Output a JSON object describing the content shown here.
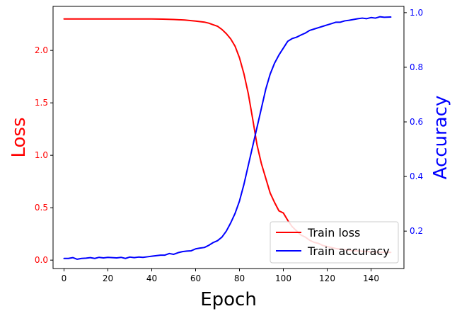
{
  "chart_data": {
    "type": "line",
    "xlabel": "Epoch",
    "ylabel_left": "Loss",
    "ylabel_right": "Accuracy",
    "xlim": [
      -5,
      155
    ],
    "ylim_left": [
      -0.08,
      2.42
    ],
    "ylim_right": [
      0.063,
      1.023
    ],
    "x_ticks": [
      0,
      20,
      40,
      60,
      80,
      100,
      120,
      140
    ],
    "left_ticks": [
      0.0,
      0.5,
      1.0,
      1.5,
      2.0
    ],
    "right_ticks": [
      0.2,
      0.4,
      0.6,
      0.8,
      1.0
    ],
    "left_tick_labels": [
      "0.0",
      "0.5",
      "1.0",
      "1.5",
      "2.0"
    ],
    "right_tick_labels": [
      "0.2",
      "0.4",
      "0.6",
      "0.8",
      "1.0"
    ],
    "x_tick_labels": [
      "0",
      "20",
      "40",
      "60",
      "80",
      "100",
      "120",
      "140"
    ],
    "legend_position": "bottom-right",
    "grid": false,
    "colors": {
      "loss": "#ff0000",
      "accuracy": "#0000ff",
      "axis": "#000000"
    },
    "series": [
      {
        "name": "Train loss",
        "axis": "left",
        "color": "#ff0000",
        "x": [
          0,
          10,
          20,
          30,
          40,
          45,
          50,
          55,
          60,
          62,
          64,
          66,
          68,
          70,
          72,
          74,
          76,
          78,
          80,
          82,
          84,
          86,
          88,
          90,
          92,
          94,
          96,
          98,
          100,
          102,
          104,
          106,
          108,
          110,
          112,
          114,
          116,
          118,
          120,
          122,
          124,
          126,
          128,
          130,
          132,
          134,
          136,
          138,
          140,
          142,
          144,
          146,
          149
        ],
        "values": [
          2.3,
          2.3,
          2.3,
          2.3,
          2.3,
          2.298,
          2.295,
          2.29,
          2.28,
          2.275,
          2.27,
          2.26,
          2.245,
          2.23,
          2.2,
          2.16,
          2.11,
          2.04,
          1.93,
          1.78,
          1.59,
          1.35,
          1.1,
          0.92,
          0.78,
          0.64,
          0.55,
          0.47,
          0.45,
          0.38,
          0.32,
          0.28,
          0.24,
          0.22,
          0.19,
          0.17,
          0.16,
          0.14,
          0.13,
          0.12,
          0.11,
          0.105,
          0.1,
          0.095,
          0.09,
          0.088,
          0.085,
          0.082,
          0.08,
          0.078,
          0.076,
          0.075,
          0.074
        ]
      },
      {
        "name": "Train accuracy",
        "axis": "right",
        "color": "#0000ff",
        "x": [
          0,
          2,
          4,
          6,
          8,
          10,
          12,
          14,
          16,
          18,
          20,
          22,
          24,
          26,
          28,
          30,
          32,
          34,
          36,
          38,
          40,
          42,
          44,
          46,
          48,
          50,
          52,
          54,
          56,
          58,
          60,
          62,
          64,
          66,
          68,
          70,
          72,
          74,
          76,
          78,
          80,
          82,
          84,
          86,
          88,
          90,
          92,
          94,
          96,
          98,
          100,
          102,
          104,
          106,
          108,
          110,
          112,
          114,
          116,
          118,
          120,
          122,
          124,
          126,
          128,
          130,
          132,
          134,
          136,
          138,
          140,
          142,
          144,
          146,
          149
        ],
        "values": [
          0.1,
          0.1,
          0.103,
          0.097,
          0.1,
          0.101,
          0.103,
          0.1,
          0.104,
          0.102,
          0.104,
          0.103,
          0.102,
          0.104,
          0.1,
          0.105,
          0.103,
          0.105,
          0.104,
          0.106,
          0.108,
          0.11,
          0.112,
          0.112,
          0.118,
          0.115,
          0.121,
          0.125,
          0.127,
          0.128,
          0.135,
          0.138,
          0.14,
          0.148,
          0.158,
          0.165,
          0.178,
          0.2,
          0.23,
          0.265,
          0.31,
          0.37,
          0.44,
          0.51,
          0.58,
          0.65,
          0.72,
          0.775,
          0.815,
          0.845,
          0.87,
          0.895,
          0.905,
          0.91,
          0.918,
          0.925,
          0.935,
          0.94,
          0.945,
          0.95,
          0.955,
          0.96,
          0.965,
          0.965,
          0.97,
          0.972,
          0.975,
          0.978,
          0.98,
          0.978,
          0.982,
          0.98,
          0.985,
          0.983,
          0.984
        ]
      }
    ]
  }
}
